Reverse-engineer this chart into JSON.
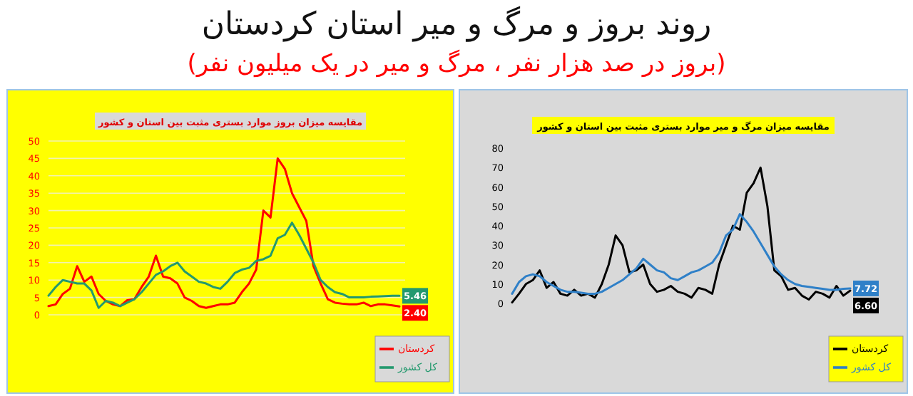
{
  "chart_data": [
    {
      "type": "other",
      "title": "روند بروز و مرگ و میر استان کردستان",
      "subtitle": "(بروز در صد هزار نفر ، مرگ و میر در یک میلیون نفر)"
    },
    {
      "type": "line",
      "title": "مقایسه میزان بروز موارد بستری مثبت بین استان و کشور",
      "categories": [
        null,
        null,
        null,
        null,
        null,
        null,
        null,
        null,
        null,
        null,
        null,
        null,
        null,
        null,
        null,
        null,
        null,
        null,
        null,
        null,
        null,
        null,
        null,
        null,
        null,
        null,
        null,
        null,
        null,
        null,
        null,
        null,
        null,
        null,
        null,
        null,
        null,
        null,
        null,
        null,
        null,
        null,
        null,
        null,
        null,
        null,
        null,
        null,
        null,
        null
      ],
      "series": [
        {
          "name": "کردستان",
          "color": "#ff0000",
          "values": [
            2.5,
            3,
            6,
            7.5,
            14,
            9.5,
            11,
            6,
            4,
            3,
            2.5,
            4.2,
            4.5,
            8,
            11,
            17,
            11,
            10.5,
            9,
            5,
            4,
            2.5,
            2,
            2.5,
            3,
            3,
            3.5,
            6.5,
            9,
            13,
            30,
            28,
            45,
            42,
            35,
            31,
            27,
            14,
            9,
            4.5,
            3.5,
            3.2,
            3,
            3,
            3.5,
            2.5,
            3,
            3,
            2.7,
            2.4
          ],
          "value_labels": [
            null,
            null,
            null,
            null,
            null,
            null,
            null,
            null,
            null,
            null,
            null,
            null,
            null,
            null,
            null,
            null,
            null,
            null,
            null,
            null,
            null,
            null,
            null,
            null,
            null,
            null,
            null,
            null,
            null,
            null,
            null,
            null,
            null,
            null,
            null,
            null,
            null,
            null,
            null,
            null,
            null,
            null,
            null,
            null,
            null,
            null,
            null,
            null,
            null,
            "2.40"
          ]
        },
        {
          "name": "کل کشور",
          "color": "#23996e",
          "values": [
            5.5,
            8,
            10,
            9.5,
            9,
            9,
            7,
            2,
            4,
            3.5,
            2.5,
            3.5,
            4.5,
            6.5,
            9,
            11.5,
            12.5,
            14,
            15,
            12.5,
            11,
            9.5,
            9,
            8,
            7.5,
            9.5,
            12,
            13,
            13.5,
            15.5,
            16,
            17,
            22,
            23,
            26.5,
            23,
            19,
            15,
            10,
            8,
            6.5,
            6,
            5,
            5,
            5,
            5.2,
            5.3,
            5.4,
            5.5,
            5.46
          ],
          "value_labels": [
            null,
            null,
            null,
            null,
            null,
            null,
            null,
            null,
            null,
            null,
            null,
            null,
            null,
            null,
            null,
            null,
            null,
            null,
            null,
            null,
            null,
            null,
            null,
            null,
            null,
            null,
            null,
            null,
            null,
            null,
            null,
            null,
            null,
            null,
            null,
            null,
            null,
            null,
            null,
            null,
            null,
            null,
            null,
            null,
            null,
            null,
            null,
            null,
            null,
            "5.46"
          ]
        }
      ],
      "ylim": [
        0,
        50
      ],
      "yticks": [
        0,
        5,
        10,
        15,
        20,
        25,
        30,
        35,
        40,
        45,
        50
      ],
      "grid": "y",
      "legend": "bottom right",
      "marker": "none"
    },
    {
      "type": "line",
      "title": "مقایسه میزان مرگ و میر موارد بستری مثبت بین استان و کشور",
      "categories": [
        null,
        null,
        null,
        null,
        null,
        null,
        null,
        null,
        null,
        null,
        null,
        null,
        null,
        null,
        null,
        null,
        null,
        null,
        null,
        null,
        null,
        null,
        null,
        null,
        null,
        null,
        null,
        null,
        null,
        null,
        null,
        null,
        null,
        null,
        null,
        null,
        null,
        null,
        null,
        null,
        null,
        null,
        null,
        null,
        null,
        null,
        null,
        null,
        null,
        null
      ],
      "series": [
        {
          "name": "کردستان",
          "color": "#000000",
          "values": [
            0.5,
            5,
            10,
            12,
            17,
            8,
            11,
            5,
            4,
            7,
            4,
            5,
            3,
            10,
            20,
            35,
            30,
            16,
            17,
            20,
            10,
            6,
            7,
            9,
            6,
            5,
            3,
            8,
            7,
            5,
            20,
            30,
            40,
            38,
            57,
            62,
            70,
            50,
            17,
            14,
            7,
            8,
            4,
            2,
            6,
            5,
            3,
            9,
            4,
            6.6
          ],
          "value_labels": [
            null,
            null,
            null,
            null,
            null,
            null,
            null,
            null,
            null,
            null,
            null,
            null,
            null,
            null,
            null,
            null,
            null,
            null,
            null,
            null,
            null,
            null,
            null,
            null,
            null,
            null,
            null,
            null,
            null,
            null,
            null,
            null,
            null,
            null,
            null,
            null,
            null,
            null,
            null,
            null,
            null,
            null,
            null,
            null,
            null,
            null,
            null,
            null,
            null,
            "6.60"
          ]
        },
        {
          "name": "کل کشور",
          "color": "#2f80c8",
          "values": [
            5,
            11,
            14,
            15,
            14,
            11,
            9,
            7,
            6,
            6,
            5.5,
            5,
            5,
            6,
            8,
            10,
            12,
            15,
            18,
            23,
            20,
            17,
            16,
            13,
            12,
            14,
            16,
            17,
            19,
            21,
            26,
            35,
            38,
            46,
            42,
            37,
            31,
            25,
            19,
            15,
            12,
            10,
            9,
            8.5,
            8,
            7.5,
            7,
            7,
            7.5,
            7.72
          ],
          "value_labels": [
            null,
            null,
            null,
            null,
            null,
            null,
            null,
            null,
            null,
            null,
            null,
            null,
            null,
            null,
            null,
            null,
            null,
            null,
            null,
            null,
            null,
            null,
            null,
            null,
            null,
            null,
            null,
            null,
            null,
            null,
            null,
            null,
            null,
            null,
            null,
            null,
            null,
            null,
            null,
            null,
            null,
            null,
            null,
            null,
            null,
            null,
            null,
            null,
            null,
            "7.72"
          ]
        }
      ],
      "ylim": [
        0,
        80
      ],
      "yticks": [
        0,
        10,
        20,
        30,
        40,
        50,
        60,
        70,
        80
      ],
      "legend": "bottom right",
      "marker": "none"
    }
  ]
}
